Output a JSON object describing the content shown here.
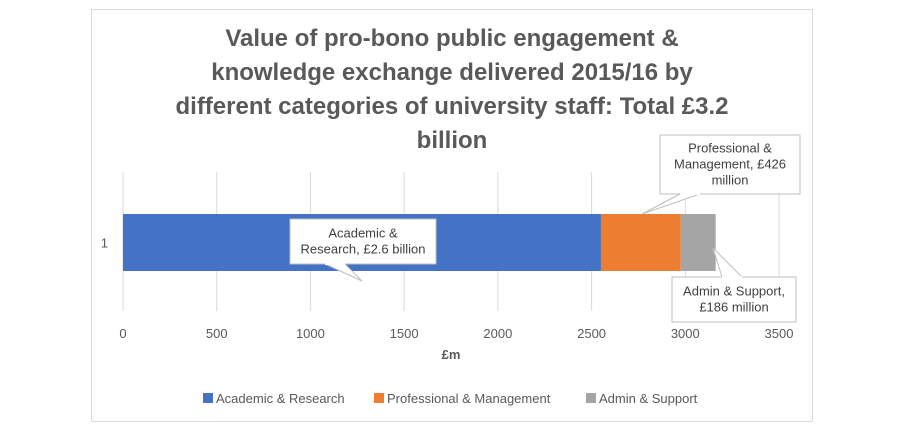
{
  "chart_data": {
    "type": "bar",
    "orientation": "horizontal",
    "stacked": true,
    "title": "Value of pro-bono public engagement & knowledge exchange delivered 2015/16 by different categories of university staff: Total £3.2 billion",
    "title_lines": [
      "Value of pro-bono public engagement &",
      "knowledge exchange delivered 2015/16 by",
      "different categories of university staff: Total £3.2",
      "billion"
    ],
    "categories": [
      "1"
    ],
    "series": [
      {
        "name": "Academic & Research",
        "values": [
          2550
        ],
        "color": "#4472c4",
        "label_lines": [
          "Academic &",
          "Research,  £2.6 billion"
        ]
      },
      {
        "name": "Professional & Management",
        "values": [
          426
        ],
        "color": "#ed7d31",
        "label_lines": [
          "Professional &",
          "Management,  £426",
          "million"
        ]
      },
      {
        "name": "Admin & Support",
        "values": [
          186
        ],
        "color": "#a5a5a5",
        "label_lines": [
          "Admin & Support,",
          "£186 million"
        ]
      }
    ],
    "xlabel": "£m",
    "xlim": [
      0,
      3500
    ],
    "xticks": [
      0,
      500,
      1000,
      1500,
      2000,
      2500,
      3000,
      3500
    ],
    "grid": true,
    "legend_position": "bottom"
  }
}
